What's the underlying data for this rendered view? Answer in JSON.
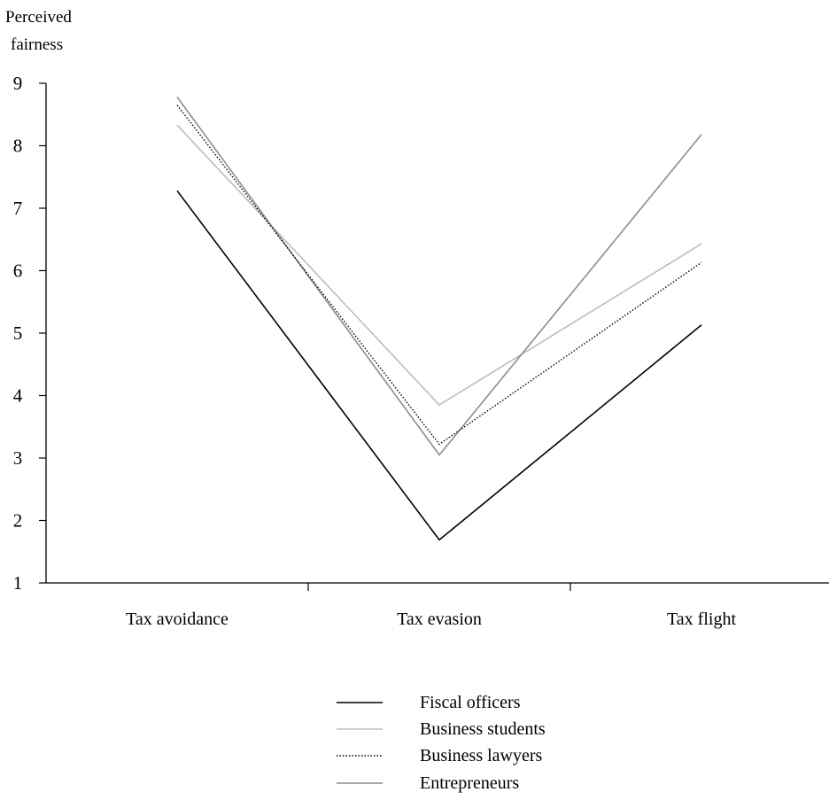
{
  "chart_data": {
    "type": "line",
    "ylabel_lines": [
      "Perceived",
      "fairness"
    ],
    "xlabel": "",
    "categories": [
      "Tax avoidance",
      "Tax evasion",
      "Tax flight"
    ],
    "ylim": [
      1,
      9
    ],
    "yticks": [
      "1",
      "2",
      "3",
      "4",
      "5",
      "6",
      "7",
      "8",
      "9"
    ],
    "grid": false,
    "legend_position": "bottom-center",
    "series": [
      {
        "name": "Fiscal officers",
        "values": [
          7.28,
          1.69,
          5.13
        ],
        "color": "#000000",
        "style": "solid"
      },
      {
        "name": "Business students",
        "values": [
          8.33,
          3.85,
          6.43
        ],
        "color": "#bdbdbd",
        "style": "solid"
      },
      {
        "name": "Business lawyers",
        "values": [
          8.65,
          3.22,
          6.13
        ],
        "color": "#000000",
        "style": "dotted"
      },
      {
        "name": "Entrepreneurs",
        "values": [
          8.78,
          3.05,
          8.18
        ],
        "color": "#8c8c8c",
        "style": "solid"
      }
    ]
  }
}
